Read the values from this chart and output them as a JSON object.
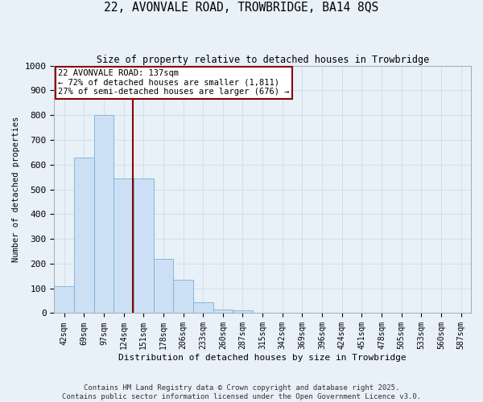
{
  "title": "22, AVONVALE ROAD, TROWBRIDGE, BA14 8QS",
  "subtitle": "Size of property relative to detached houses in Trowbridge",
  "xlabel": "Distribution of detached houses by size in Trowbridge",
  "ylabel": "Number of detached properties",
  "bar_labels": [
    "42sqm",
    "69sqm",
    "97sqm",
    "124sqm",
    "151sqm",
    "178sqm",
    "206sqm",
    "233sqm",
    "260sqm",
    "287sqm",
    "315sqm",
    "342sqm",
    "369sqm",
    "396sqm",
    "424sqm",
    "451sqm",
    "478sqm",
    "505sqm",
    "533sqm",
    "560sqm",
    "587sqm"
  ],
  "bar_values": [
    108,
    630,
    800,
    545,
    545,
    220,
    135,
    45,
    15,
    10,
    0,
    0,
    0,
    0,
    0,
    0,
    0,
    0,
    0,
    0,
    0
  ],
  "bar_color": "#cce0f5",
  "bar_edgecolor": "#7ab0d4",
  "grid_color": "#c8d8e8",
  "background_color": "#e8f0f8",
  "vline_color": "#8b0000",
  "annotation_text": "22 AVONVALE ROAD: 137sqm\n← 72% of detached houses are smaller (1,811)\n27% of semi-detached houses are larger (676) →",
  "annotation_box_facecolor": "#ffffff",
  "annotation_box_edgecolor": "#8b0000",
  "ylim": [
    0,
    1000
  ],
  "yticks": [
    0,
    100,
    200,
    300,
    400,
    500,
    600,
    700,
    800,
    900,
    1000
  ],
  "footer_line1": "Contains HM Land Registry data © Crown copyright and database right 2025.",
  "footer_line2": "Contains public sector information licensed under the Open Government Licence v3.0."
}
